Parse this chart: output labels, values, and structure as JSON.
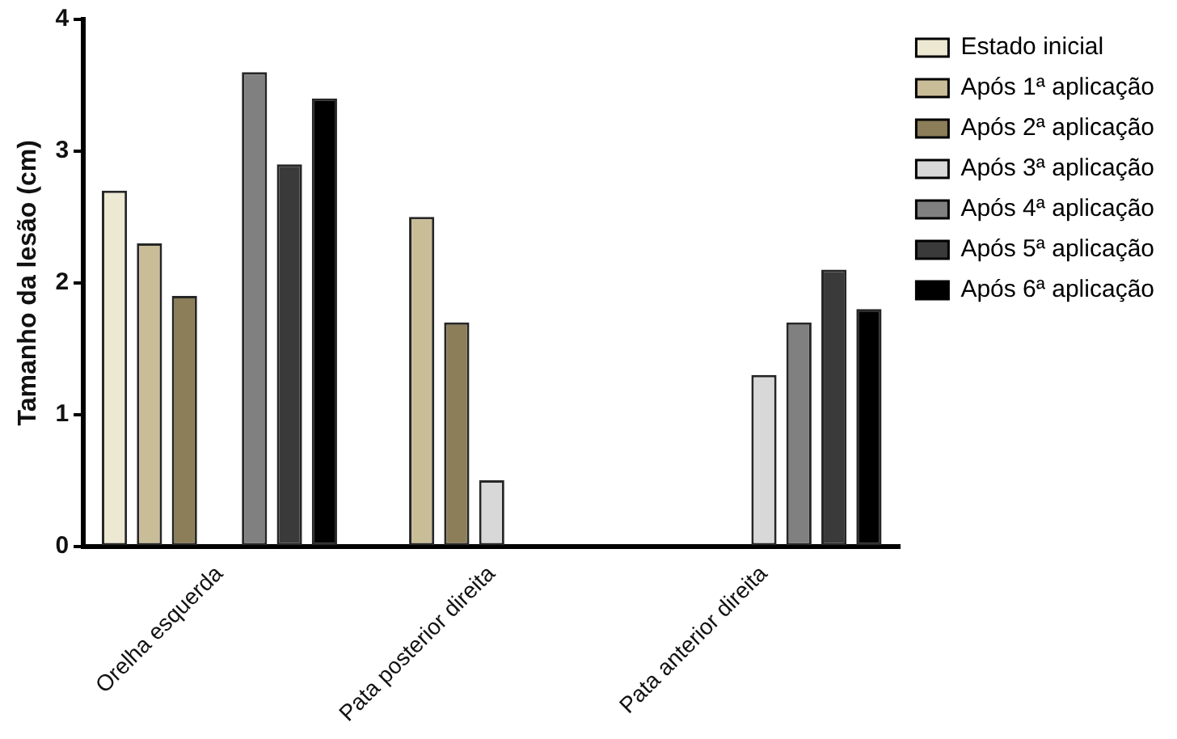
{
  "chart_data": {
    "type": "bar",
    "ylabel": "Tamanho da lesão (cm)",
    "categories": [
      "Orelha esquerda",
      "Pata posterior direita",
      "Pata anterior direita"
    ],
    "series": [
      {
        "name": "Estado inicial",
        "color": "#ece8d2",
        "values": [
          2.7,
          null,
          null
        ]
      },
      {
        "name": "Após 1ª aplicação",
        "color": "#c9bd98",
        "values": [
          2.3,
          2.5,
          null
        ]
      },
      {
        "name": "Após 2ª aplicação",
        "color": "#8b7e58",
        "values": [
          1.9,
          1.7,
          null
        ]
      },
      {
        "name": "Após 3ª aplicação",
        "color": "#d8d8d8",
        "values": [
          null,
          0.5,
          1.3
        ]
      },
      {
        "name": "Após 4ª aplicação",
        "color": "#808080",
        "values": [
          3.6,
          null,
          1.7
        ]
      },
      {
        "name": "Após 5ª aplicação",
        "color": "#3a3a3a",
        "values": [
          2.9,
          null,
          2.1
        ]
      },
      {
        "name": "Após 6ª aplicação",
        "color": "#000000",
        "values": [
          3.4,
          null,
          1.8
        ]
      }
    ],
    "ylim": [
      0,
      4
    ],
    "yticks": [
      0,
      1,
      2,
      3,
      4
    ],
    "grid": false,
    "legend": "right"
  }
}
